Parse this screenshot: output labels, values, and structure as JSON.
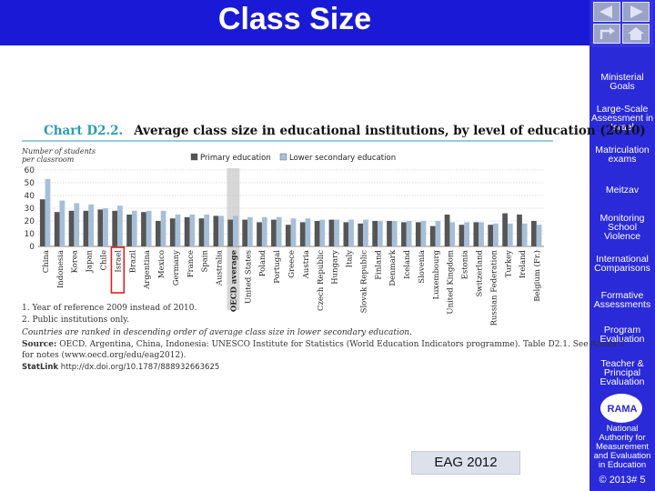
{
  "slide": {
    "title": "Class Size",
    "eag_label": "EAG 2012",
    "copyright": "© 2013# 5"
  },
  "sidebar": {
    "items": [
      {
        "label": "Ministerial Goals"
      },
      {
        "label": "Large-Scale Assessment in Israel"
      },
      {
        "label": "Matriculation exams"
      },
      {
        "label": "Meitzav"
      },
      {
        "label": "Monitoring School Violence"
      },
      {
        "label": "International Comparisons"
      },
      {
        "label": "Formative Assessments"
      },
      {
        "label": "Program Evaluation"
      },
      {
        "label": "Teacher & Principal Evaluation"
      }
    ],
    "rama_logo": "RAMA",
    "rama_full": "National Authority for Measurement and Evaluation in Education"
  },
  "chart_data": {
    "type": "bar",
    "chart_id": "Chart D2.2.",
    "title": "Average class size in educational institutions, by level of education (2010)",
    "ylabel": "Number of students per classroom",
    "ylim": [
      0,
      60
    ],
    "yticks": [
      0,
      10,
      20,
      30,
      40,
      50,
      60
    ],
    "categories": [
      "China",
      "Indonesia",
      "Korea",
      "Japan",
      "Chile",
      "Israel",
      "Brazil",
      "Argentina",
      "Mexico",
      "Germany",
      "France",
      "Spain",
      "Australia",
      "OECD average",
      "United States",
      "Poland",
      "Portugal",
      "Greece",
      "Austria",
      "Czech Republic",
      "Hungary",
      "Italy",
      "Slovak Republic",
      "Finland",
      "Denmark",
      "Iceland",
      "Slovenia",
      "Luxembourg",
      "United Kingdom",
      "Estonia",
      "Switzerland",
      "Russian Federation",
      "Turkey",
      "Ireland",
      "Belgium (Fr.)"
    ],
    "highlight": [
      "Israel",
      "OECD average"
    ],
    "series": [
      {
        "name": "Primary education",
        "color": "#555555",
        "values": [
          37,
          27,
          28,
          28,
          29,
          28,
          25,
          27,
          20,
          22,
          23,
          22,
          24,
          21,
          21,
          19,
          21,
          17,
          19,
          20,
          21,
          19,
          18,
          20,
          20,
          19,
          19,
          16,
          25,
          17,
          19,
          17,
          26,
          25,
          20
        ]
      },
      {
        "name": "Lower secondary education",
        "color": "#a6bfd8",
        "values": [
          53,
          36,
          34,
          33,
          30,
          32,
          28,
          28,
          28,
          25,
          25,
          25,
          24,
          24,
          23,
          23,
          23,
          22,
          22,
          21,
          21,
          21,
          21,
          20,
          20,
          20,
          20,
          20,
          19,
          19,
          19,
          18,
          18,
          18,
          17
        ]
      }
    ],
    "legend_position": "top"
  },
  "notes": {
    "note1": "1. Year of reference 2009 instead of 2010.",
    "note2": "2. Public institutions only.",
    "note3": "Countries are ranked in descending order of average class size in lower secondary education.",
    "source_label": "Source:",
    "source_text": "OECD. Argentina, China, Indonesia: UNESCO Institute for Statistics (World Education Indicators programme). Table D2.1. See Annex 3",
    "source_text2": "for notes (www.oecd.org/edu/eag2012).",
    "statlink_label": "StatLink",
    "statlink_url": "http://dx.doi.org/10.1787/888932663625"
  }
}
